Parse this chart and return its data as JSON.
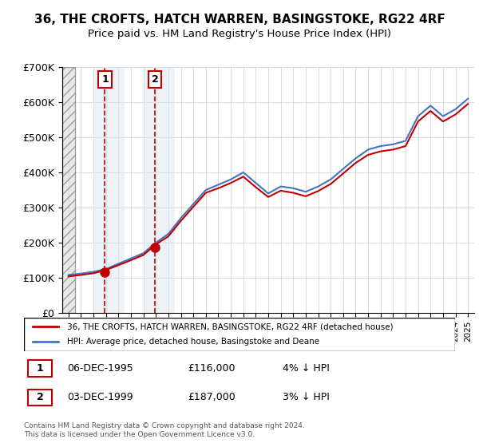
{
  "title": "36, THE CROFTS, HATCH WARREN, BASINGSTOKE, RG22 4RF",
  "subtitle": "Price paid vs. HM Land Registry's House Price Index (HPI)",
  "legend_line1": "36, THE CROFTS, HATCH WARREN, BASINGSTOKE, RG22 4RF (detached house)",
  "legend_line2": "HPI: Average price, detached house, Basingstoke and Deane",
  "transaction1_label": "1",
  "transaction1_date": "06-DEC-1995",
  "transaction1_price": "£116,000",
  "transaction1_hpi": "4% ↓ HPI",
  "transaction2_label": "2",
  "transaction2_date": "03-DEC-1999",
  "transaction2_price": "£187,000",
  "transaction2_hpi": "3% ↓ HPI",
  "footer": "Contains HM Land Registry data © Crown copyright and database right 2024.\nThis data is licensed under the Open Government Licence v3.0.",
  "sale1_year": 1995.92,
  "sale1_price": 116000,
  "sale2_year": 1999.92,
  "sale2_price": 187000,
  "hpi_color": "#4472C4",
  "price_color": "#C00000",
  "background_color": "#FFFFFF",
  "ylim": [
    0,
    700000
  ],
  "xlim_start": 1993,
  "xlim_end": 2025.5
}
